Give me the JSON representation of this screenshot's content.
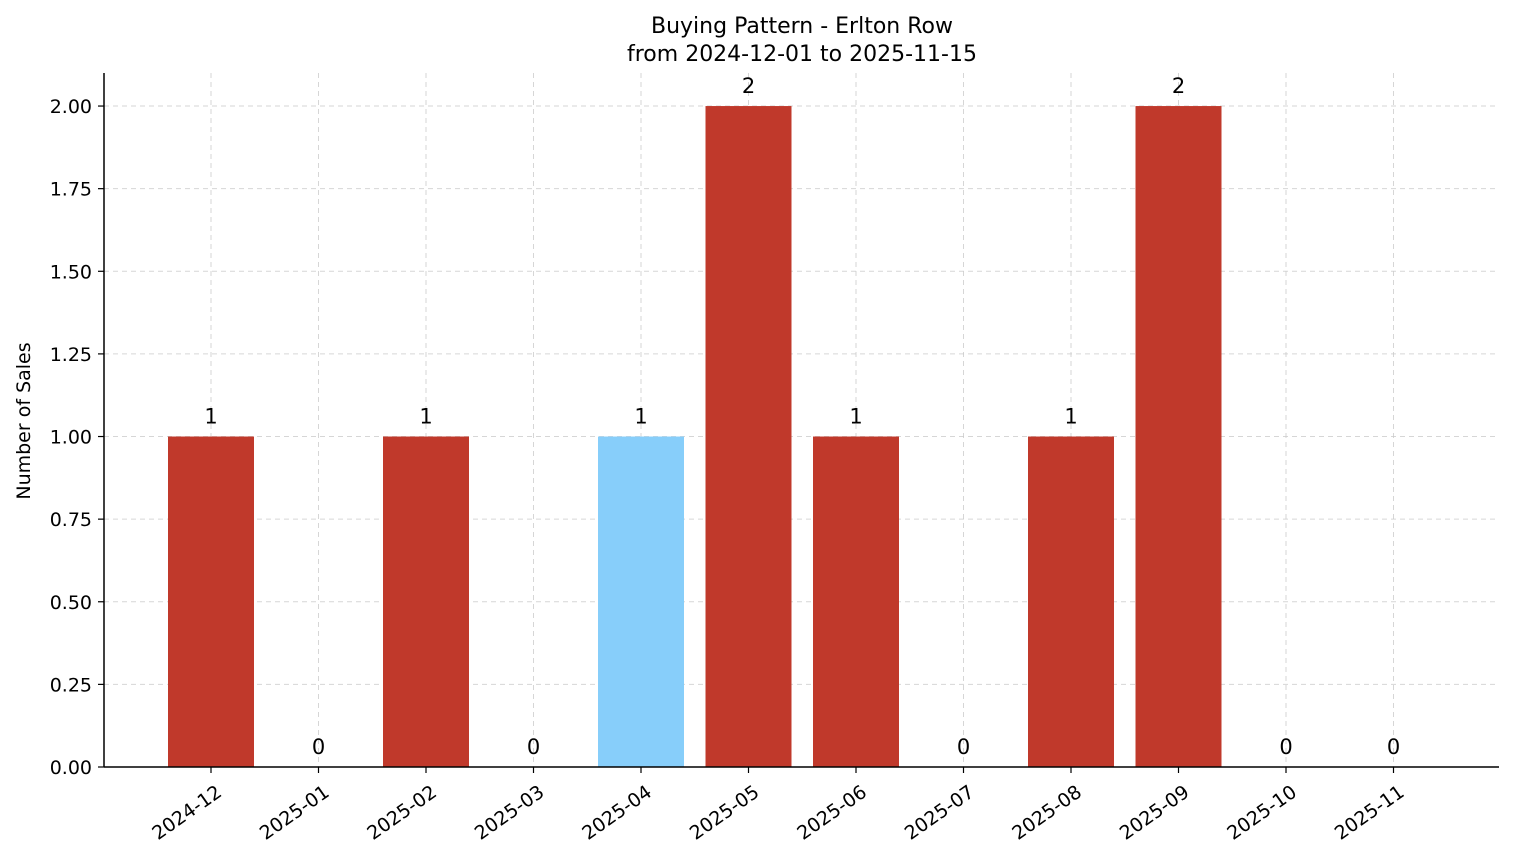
{
  "chart_data": {
    "type": "bar",
    "title": "Buying Pattern - Erlton Row",
    "subtitle": "from 2024-12-01 to 2025-11-15",
    "xlabel": "",
    "ylabel": "Number of Sales",
    "categories": [
      "2024-12",
      "2025-01",
      "2025-02",
      "2025-03",
      "2025-04",
      "2025-05",
      "2025-06",
      "2025-07",
      "2025-08",
      "2025-09",
      "2025-10",
      "2025-11"
    ],
    "values": [
      1,
      0,
      1,
      0,
      1,
      2,
      1,
      0,
      1,
      2,
      0,
      0
    ],
    "data_labels": [
      "1",
      "0",
      "1",
      "0",
      "1",
      "2",
      "1",
      "0",
      "1",
      "2",
      "0",
      "0"
    ],
    "bar_colors": [
      "#c0392b",
      "#c0392b",
      "#c0392b",
      "#c0392b",
      "#87cefa",
      "#c0392b",
      "#c0392b",
      "#c0392b",
      "#c0392b",
      "#c0392b",
      "#c0392b",
      "#c0392b"
    ],
    "ylim": [
      0,
      2.1
    ],
    "yticks": [
      0,
      0.25,
      0.5,
      0.75,
      1.0,
      1.25,
      1.5,
      1.75,
      2.0
    ],
    "ytick_labels": [
      "0.00",
      "0.25",
      "0.50",
      "0.75",
      "1.00",
      "1.25",
      "1.50",
      "1.75",
      "2.00"
    ],
    "grid": true,
    "legend": "none"
  }
}
